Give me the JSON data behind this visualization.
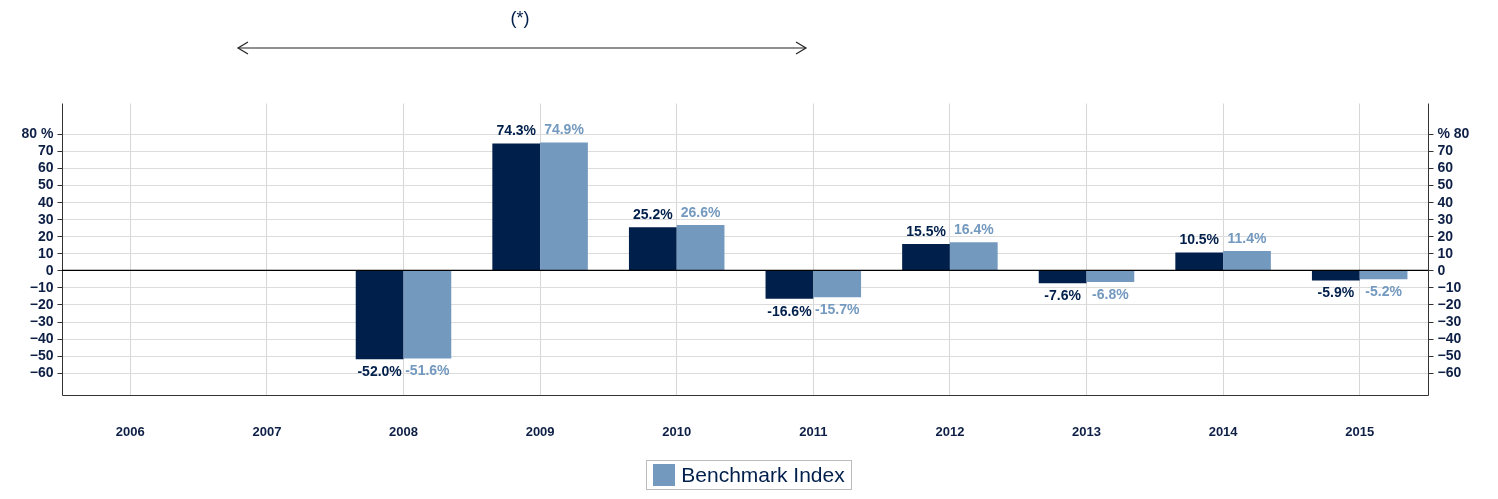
{
  "chart_data": {
    "type": "bar",
    "annotations": [
      "(*)"
    ],
    "categories": [
      "2006",
      "2007",
      "2008",
      "2009",
      "2010",
      "2011",
      "2012",
      "2013",
      "2014",
      "2015"
    ],
    "series": [
      {
        "color": "#001f4b",
        "values": [
          null,
          null,
          -52.0,
          74.3,
          25.2,
          -16.6,
          15.5,
          -7.6,
          10.5,
          -5.9
        ],
        "value_labels": [
          null,
          null,
          "-52.0%",
          "74.3%",
          "25.2%",
          "-16.6%",
          "15.5%",
          "-7.6%",
          "10.5%",
          "-5.9%"
        ]
      },
      {
        "name": "Benchmark Index",
        "color": "#7399bf",
        "values": [
          null,
          null,
          -51.6,
          74.9,
          26.6,
          -15.7,
          16.4,
          -6.8,
          11.4,
          -5.2
        ],
        "value_labels": [
          null,
          null,
          "-51.6%",
          "74.9%",
          "26.6%",
          "-15.7%",
          "16.4%",
          "-6.8%",
          "11.4%",
          "-5.2%"
        ]
      }
    ],
    "ylim": [
      -73,
      98
    ],
    "yticks": [
      -60,
      -50,
      -40,
      -30,
      -20,
      -10,
      0,
      10,
      20,
      30,
      40,
      50,
      60,
      70,
      {
        "value": 80,
        "label": "80  %"
      }
    ],
    "y2lim": [
      -73,
      98
    ],
    "y2ticks": [
      -60,
      -50,
      -40,
      -30,
      -20,
      -10,
      0,
      10,
      20,
      30,
      40,
      50,
      60,
      70,
      {
        "value": 80,
        "label": "%  80"
      }
    ],
    "grid": true,
    "legend": "bottom"
  }
}
